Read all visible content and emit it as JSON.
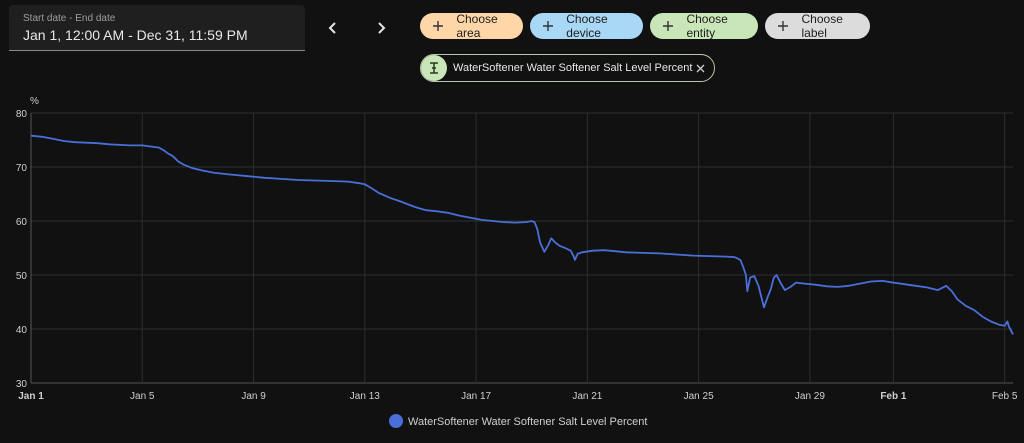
{
  "date_range": {
    "caption": "Start date - End date",
    "value": "Jan 1, 12:00 AM - Dec 31, 11:59 PM"
  },
  "nav": {
    "prev_icon": "chevron-left-icon",
    "next_icon": "chevron-right-icon"
  },
  "chips": [
    {
      "label": "Choose area",
      "bg": "#ffd6a8"
    },
    {
      "label": "Choose device",
      "bg": "#a8d8f5"
    },
    {
      "label": "Choose entity",
      "bg": "#c9e6b8"
    },
    {
      "label": "Choose label",
      "bg": "#dcdcdc"
    }
  ],
  "entity_chip": {
    "label": "WaterSoftener Water Softener Salt Level Percent",
    "icon": "sensor-icon",
    "icon_bg": "#c9e6b8"
  },
  "colors": {
    "series": "#4a6fd8",
    "grid": "#2e2e2e",
    "axis": "#555555",
    "text": "#cfcfcf"
  },
  "chart_data": {
    "type": "line",
    "ylabel": "%",
    "ylim": [
      30,
      80
    ],
    "yticks": [
      30,
      40,
      50,
      60,
      70,
      80
    ],
    "xlim": [
      0,
      35.3
    ],
    "xticks": [
      {
        "label": "Jan 1",
        "day": 0,
        "bold": true
      },
      {
        "label": "Jan 5",
        "day": 4,
        "bold": false
      },
      {
        "label": "Jan 9",
        "day": 8,
        "bold": false
      },
      {
        "label": "Jan 13",
        "day": 12,
        "bold": false
      },
      {
        "label": "Jan 17",
        "day": 16,
        "bold": false
      },
      {
        "label": "Jan 21",
        "day": 20,
        "bold": false
      },
      {
        "label": "Jan 25",
        "day": 24,
        "bold": false
      },
      {
        "label": "Jan 29",
        "day": 28,
        "bold": false
      },
      {
        "label": "Feb 1",
        "day": 31,
        "bold": true
      },
      {
        "label": "Feb 5",
        "day": 35,
        "bold": false
      }
    ],
    "grid": true,
    "legend": {
      "position": "bottom-center"
    },
    "series": [
      {
        "name": "WaterSoftener Water Softener Salt Level Percent",
        "points": [
          [
            0,
            75.8
          ],
          [
            0.4,
            75.6
          ],
          [
            0.8,
            75.2
          ],
          [
            1.2,
            74.8
          ],
          [
            1.6,
            74.6
          ],
          [
            2.0,
            74.5
          ],
          [
            2.4,
            74.4
          ],
          [
            2.8,
            74.2
          ],
          [
            3.2,
            74.1
          ],
          [
            3.6,
            74.0
          ],
          [
            4.0,
            74.0
          ],
          [
            4.3,
            73.8
          ],
          [
            4.6,
            73.6
          ],
          [
            4.8,
            73.0
          ],
          [
            4.9,
            72.6
          ],
          [
            5.1,
            72.0
          ],
          [
            5.3,
            71.0
          ],
          [
            5.5,
            70.4
          ],
          [
            5.8,
            69.8
          ],
          [
            6.2,
            69.3
          ],
          [
            6.6,
            68.9
          ],
          [
            7.2,
            68.6
          ],
          [
            7.8,
            68.3
          ],
          [
            8.4,
            68.0
          ],
          [
            9.0,
            67.8
          ],
          [
            9.6,
            67.6
          ],
          [
            10.2,
            67.5
          ],
          [
            10.8,
            67.4
          ],
          [
            11.4,
            67.3
          ],
          [
            11.8,
            67.0
          ],
          [
            12.0,
            66.8
          ],
          [
            12.2,
            66.2
          ],
          [
            12.5,
            65.2
          ],
          [
            12.9,
            64.3
          ],
          [
            13.3,
            63.6
          ],
          [
            13.8,
            62.6
          ],
          [
            14.2,
            62.0
          ],
          [
            14.6,
            61.8
          ],
          [
            15.0,
            61.5
          ],
          [
            15.4,
            61.0
          ],
          [
            15.8,
            60.6
          ],
          [
            16.2,
            60.2
          ],
          [
            16.6,
            60.0
          ],
          [
            17.0,
            59.8
          ],
          [
            17.4,
            59.7
          ],
          [
            17.8,
            59.8
          ],
          [
            18.0,
            60.0
          ],
          [
            18.1,
            59.8
          ],
          [
            18.2,
            58.5
          ],
          [
            18.3,
            56.0
          ],
          [
            18.45,
            54.3
          ],
          [
            18.6,
            55.6
          ],
          [
            18.7,
            56.8
          ],
          [
            18.85,
            56.0
          ],
          [
            19.0,
            55.4
          ],
          [
            19.2,
            55.0
          ],
          [
            19.4,
            54.5
          ],
          [
            19.5,
            53.5
          ],
          [
            19.55,
            52.8
          ],
          [
            19.65,
            53.9
          ],
          [
            19.8,
            54.2
          ],
          [
            20.2,
            54.5
          ],
          [
            20.6,
            54.6
          ],
          [
            21.0,
            54.4
          ],
          [
            21.4,
            54.2
          ],
          [
            22.0,
            54.1
          ],
          [
            22.6,
            54.0
          ],
          [
            23.2,
            53.8
          ],
          [
            23.8,
            53.6
          ],
          [
            24.4,
            53.5
          ],
          [
            25.0,
            53.4
          ],
          [
            25.3,
            53.3
          ],
          [
            25.5,
            52.8
          ],
          [
            25.6,
            51.5
          ],
          [
            25.7,
            50.0
          ],
          [
            25.75,
            47.0
          ],
          [
            25.85,
            49.5
          ],
          [
            26.0,
            49.8
          ],
          [
            26.15,
            48.0
          ],
          [
            26.25,
            46.0
          ],
          [
            26.35,
            44.0
          ],
          [
            26.45,
            45.5
          ],
          [
            26.6,
            47.5
          ],
          [
            26.7,
            49.5
          ],
          [
            26.8,
            50.0
          ],
          [
            26.95,
            48.5
          ],
          [
            27.1,
            47.2
          ],
          [
            27.3,
            47.8
          ],
          [
            27.5,
            48.6
          ],
          [
            27.8,
            48.4
          ],
          [
            28.2,
            48.2
          ],
          [
            28.6,
            47.9
          ],
          [
            29.0,
            47.8
          ],
          [
            29.4,
            48.0
          ],
          [
            29.8,
            48.4
          ],
          [
            30.2,
            48.8
          ],
          [
            30.6,
            48.9
          ],
          [
            31.0,
            48.6
          ],
          [
            31.4,
            48.3
          ],
          [
            31.8,
            48.0
          ],
          [
            32.2,
            47.7
          ],
          [
            32.6,
            47.2
          ],
          [
            32.9,
            48.0
          ],
          [
            33.1,
            47.0
          ],
          [
            33.3,
            45.5
          ],
          [
            33.6,
            44.3
          ],
          [
            33.9,
            43.5
          ],
          [
            34.2,
            42.3
          ],
          [
            34.5,
            41.4
          ],
          [
            34.8,
            40.8
          ],
          [
            35.0,
            40.6
          ],
          [
            35.1,
            41.4
          ],
          [
            35.15,
            40.5
          ],
          [
            35.3,
            39.0
          ]
        ]
      }
    ]
  }
}
